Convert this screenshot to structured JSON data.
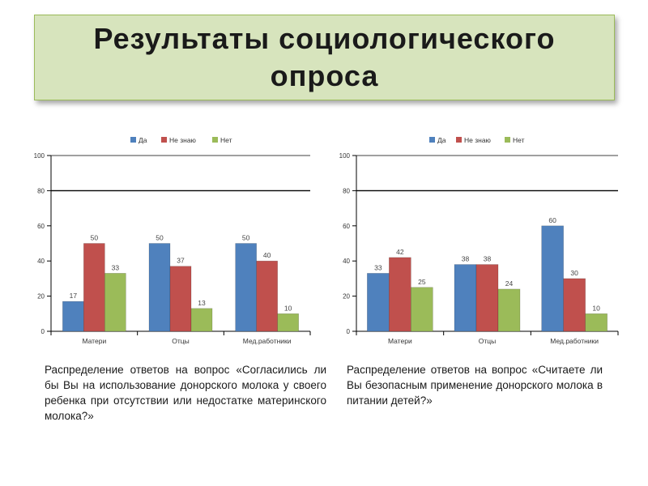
{
  "title": "Результаты социологического опроса",
  "colors": {
    "series": [
      "#4f81bd",
      "#c0504d",
      "#9bbb59"
    ],
    "axis": "#000000"
  },
  "chart_data": [
    {
      "type": "bar",
      "categories": [
        "Матери",
        "Отцы",
        "Мед.работники"
      ],
      "series": [
        {
          "name": "Да",
          "values": [
            17,
            50,
            50
          ]
        },
        {
          "name": "Не знаю",
          "values": [
            50,
            37,
            40
          ]
        },
        {
          "name": "Нет",
          "values": [
            33,
            13,
            10
          ]
        }
      ],
      "yticks": [
        0,
        20,
        40,
        60,
        80,
        100
      ],
      "ylim": [
        0,
        100
      ],
      "legend": "top",
      "grid": "y=80"
    },
    {
      "type": "bar",
      "categories": [
        "Матери",
        "Отцы",
        "Мед.работники"
      ],
      "series": [
        {
          "name": "Да",
          "values": [
            33,
            38,
            60
          ]
        },
        {
          "name": "Не знаю",
          "values": [
            42,
            38,
            30
          ]
        },
        {
          "name": "Нет",
          "values": [
            25,
            24,
            10
          ]
        }
      ],
      "yticks": [
        0,
        20,
        40,
        60,
        80,
        100
      ],
      "ylim": [
        0,
        100
      ],
      "legend": "top",
      "grid": "y=80"
    }
  ],
  "captions": [
    "Распределение ответов на вопрос «Согласились ли бы Вы на использование донорского молока у своего ребенка при отсутствии или недостатке материнского молока?»",
    "Распределение ответов на вопрос «Считаете ли Вы безопасным применение донорского молока в питании детей?»"
  ]
}
